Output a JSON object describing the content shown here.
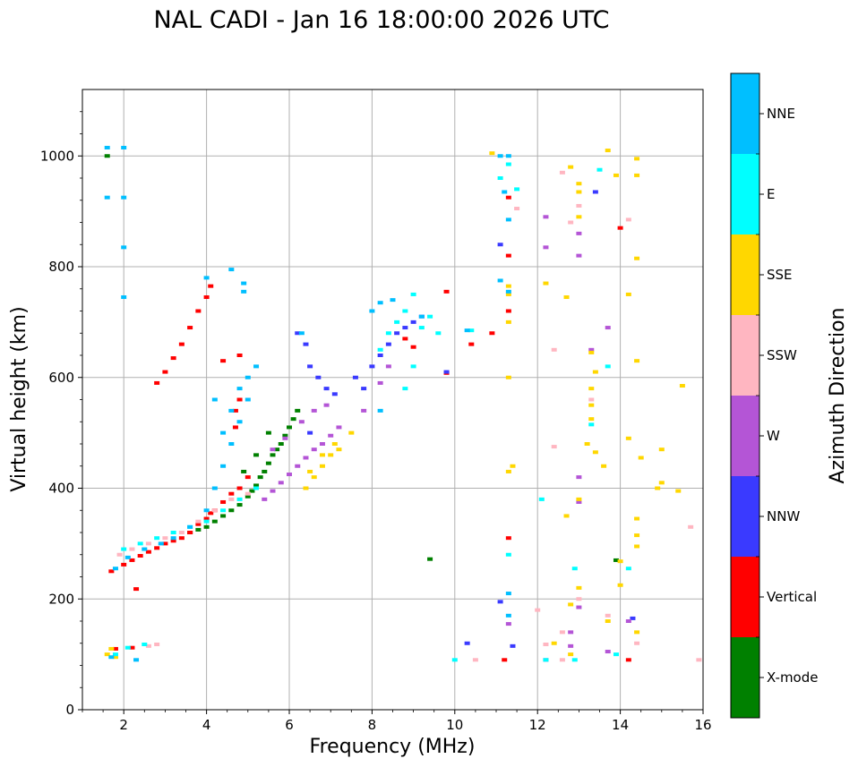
{
  "chart_data": {
    "type": "scatter",
    "title": "NAL CADI - Jan 16 18:00:00 2026 UTC",
    "xlabel": "Frequency (MHz)",
    "ylabel": "Virtual height (km)",
    "xlim": [
      1,
      16
    ],
    "ylim": [
      0,
      1120
    ],
    "xticks": [
      2,
      4,
      6,
      8,
      10,
      12,
      14,
      16
    ],
    "yticks": [
      0,
      200,
      400,
      600,
      800,
      1000
    ],
    "grid": true,
    "colorbar": {
      "label": "Azimuth Direction",
      "position": "right",
      "categories": [
        {
          "name": "X-mode",
          "color": "#008000"
        },
        {
          "name": "Vertical",
          "color": "#ff0000"
        },
        {
          "name": "NNW",
          "color": "#3a3aff"
        },
        {
          "name": "W",
          "color": "#b455d6"
        },
        {
          "name": "SSW",
          "color": "#ffb6c1"
        },
        {
          "name": "SSE",
          "color": "#ffd700"
        },
        {
          "name": "E",
          "color": "#00ffff"
        },
        {
          "name": "NNE",
          "color": "#00bfff"
        }
      ]
    },
    "series": [
      {
        "name": "X-mode",
        "points": [
          [
            3.6,
            320
          ],
          [
            3.8,
            325
          ],
          [
            4.0,
            330
          ],
          [
            4.2,
            340
          ],
          [
            4.4,
            350
          ],
          [
            4.6,
            360
          ],
          [
            4.8,
            370
          ],
          [
            5.0,
            385
          ],
          [
            5.1,
            395
          ],
          [
            5.2,
            405
          ],
          [
            5.3,
            420
          ],
          [
            5.4,
            430
          ],
          [
            5.5,
            445
          ],
          [
            5.6,
            460
          ],
          [
            5.7,
            470
          ],
          [
            5.8,
            480
          ],
          [
            5.9,
            495
          ],
          [
            6.0,
            510
          ],
          [
            6.1,
            525
          ],
          [
            6.2,
            540
          ],
          [
            4.9,
            430
          ],
          [
            5.2,
            460
          ],
          [
            5.5,
            500
          ],
          [
            1.6,
            1000
          ],
          [
            9.4,
            272
          ],
          [
            13.9,
            270
          ]
        ]
      },
      {
        "name": "Vertical",
        "points": [
          [
            1.7,
            250
          ],
          [
            2.0,
            262
          ],
          [
            2.2,
            270
          ],
          [
            2.4,
            278
          ],
          [
            2.6,
            285
          ],
          [
            2.8,
            292
          ],
          [
            3.0,
            300
          ],
          [
            3.2,
            305
          ],
          [
            3.4,
            310
          ],
          [
            3.6,
            320
          ],
          [
            3.8,
            335
          ],
          [
            4.0,
            345
          ],
          [
            4.1,
            355
          ],
          [
            4.2,
            360
          ],
          [
            4.4,
            375
          ],
          [
            4.6,
            390
          ],
          [
            4.8,
            400
          ],
          [
            5.0,
            420
          ],
          [
            2.8,
            590
          ],
          [
            3.0,
            610
          ],
          [
            3.2,
            635
          ],
          [
            3.4,
            660
          ],
          [
            3.6,
            690
          ],
          [
            3.8,
            720
          ],
          [
            4.0,
            745
          ],
          [
            4.1,
            765
          ],
          [
            4.7,
            540
          ],
          [
            4.7,
            510
          ],
          [
            4.8,
            560
          ],
          [
            4.8,
            640
          ],
          [
            4.4,
            630
          ],
          [
            2.3,
            218
          ],
          [
            2.2,
            112
          ],
          [
            1.8,
            110
          ],
          [
            11.3,
            925
          ],
          [
            11.3,
            820
          ],
          [
            11.3,
            720
          ],
          [
            11.3,
            310
          ],
          [
            14.2,
            90
          ],
          [
            14.0,
            870
          ],
          [
            9.8,
            755
          ],
          [
            9.8,
            608
          ],
          [
            10.4,
            660
          ],
          [
            10.9,
            680
          ],
          [
            8.8,
            670
          ],
          [
            9.0,
            655
          ],
          [
            11.2,
            90
          ]
        ]
      },
      {
        "name": "NNW",
        "points": [
          [
            7.6,
            600
          ],
          [
            7.8,
            580
          ],
          [
            8.0,
            620
          ],
          [
            8.2,
            640
          ],
          [
            8.4,
            660
          ],
          [
            8.6,
            680
          ],
          [
            8.8,
            690
          ],
          [
            9.0,
            700
          ],
          [
            9.2,
            710
          ],
          [
            6.2,
            680
          ],
          [
            6.4,
            660
          ],
          [
            6.5,
            620
          ],
          [
            6.7,
            600
          ],
          [
            6.9,
            580
          ],
          [
            7.1,
            570
          ],
          [
            6.5,
            500
          ],
          [
            9.8,
            610
          ],
          [
            10.3,
            120
          ],
          [
            11.1,
            195
          ],
          [
            11.4,
            115
          ],
          [
            11.1,
            840
          ],
          [
            13.4,
            935
          ],
          [
            14.3,
            165
          ]
        ]
      },
      {
        "name": "W",
        "points": [
          [
            5.4,
            380
          ],
          [
            5.6,
            395
          ],
          [
            5.8,
            410
          ],
          [
            6.0,
            425
          ],
          [
            6.2,
            440
          ],
          [
            6.4,
            455
          ],
          [
            6.6,
            470
          ],
          [
            6.8,
            480
          ],
          [
            7.0,
            495
          ],
          [
            7.2,
            510
          ],
          [
            5.6,
            470
          ],
          [
            5.9,
            490
          ],
          [
            6.3,
            520
          ],
          [
            6.6,
            540
          ],
          [
            6.9,
            550
          ],
          [
            7.8,
            540
          ],
          [
            8.2,
            590
          ],
          [
            8.4,
            620
          ],
          [
            12.2,
            890
          ],
          [
            12.2,
            835
          ],
          [
            13.0,
            860
          ],
          [
            13.0,
            820
          ],
          [
            13.0,
            420
          ],
          [
            13.0,
            375
          ],
          [
            13.0,
            185
          ],
          [
            12.8,
            115
          ],
          [
            11.3,
            155
          ],
          [
            13.7,
            690
          ],
          [
            14.2,
            160
          ],
          [
            13.7,
            105
          ],
          [
            12.8,
            140
          ],
          [
            12.2,
            90
          ],
          [
            13.3,
            650
          ]
        ]
      },
      {
        "name": "SSW",
        "points": [
          [
            1.9,
            280
          ],
          [
            2.2,
            290
          ],
          [
            2.6,
            300
          ],
          [
            3.0,
            310
          ],
          [
            3.4,
            320
          ],
          [
            3.8,
            340
          ],
          [
            4.2,
            360
          ],
          [
            4.6,
            380
          ],
          [
            5.0,
            390
          ],
          [
            2.6,
            115
          ],
          [
            2.8,
            118
          ],
          [
            12.4,
            650
          ],
          [
            12.6,
            970
          ],
          [
            12.8,
            880
          ],
          [
            13.0,
            910
          ],
          [
            13.0,
            200
          ],
          [
            12.6,
            140
          ],
          [
            12.6,
            90
          ],
          [
            10.5,
            90
          ],
          [
            14.2,
            885
          ],
          [
            15.7,
            330
          ],
          [
            15.9,
            90
          ],
          [
            12.2,
            118
          ],
          [
            13.7,
            170
          ],
          [
            14.4,
            120
          ],
          [
            11.5,
            905
          ],
          [
            12.4,
            475
          ],
          [
            13.3,
            560
          ],
          [
            12.0,
            180
          ]
        ]
      },
      {
        "name": "SSE",
        "points": [
          [
            6.4,
            400
          ],
          [
            6.6,
            420
          ],
          [
            6.8,
            440
          ],
          [
            7.0,
            460
          ],
          [
            7.2,
            470
          ],
          [
            6.5,
            430
          ],
          [
            6.8,
            460
          ],
          [
            7.1,
            480
          ],
          [
            7.5,
            500
          ],
          [
            1.6,
            100
          ],
          [
            1.7,
            110
          ],
          [
            1.8,
            95
          ],
          [
            12.8,
            980
          ],
          [
            13.0,
            950
          ],
          [
            13.0,
            935
          ],
          [
            13.0,
            890
          ],
          [
            13.0,
            380
          ],
          [
            13.0,
            220
          ],
          [
            12.8,
            190
          ],
          [
            12.8,
            100
          ],
          [
            13.3,
            645
          ],
          [
            13.4,
            610
          ],
          [
            13.3,
            580
          ],
          [
            13.3,
            550
          ],
          [
            13.3,
            525
          ],
          [
            13.4,
            465
          ],
          [
            13.2,
            480
          ],
          [
            13.6,
            440
          ],
          [
            13.9,
            965
          ],
          [
            13.7,
            1010
          ],
          [
            14.4,
            995
          ],
          [
            14.4,
            965
          ],
          [
            14.4,
            815
          ],
          [
            14.4,
            630
          ],
          [
            14.2,
            750
          ],
          [
            14.4,
            345
          ],
          [
            14.4,
            315
          ],
          [
            14.2,
            490
          ],
          [
            14.5,
            455
          ],
          [
            14.9,
            400
          ],
          [
            15.0,
            470
          ],
          [
            15.0,
            410
          ],
          [
            15.4,
            395
          ],
          [
            15.5,
            585
          ],
          [
            12.2,
            770
          ],
          [
            12.7,
            350
          ],
          [
            12.7,
            745
          ],
          [
            14.4,
            295
          ],
          [
            14.4,
            140
          ],
          [
            14.0,
            268
          ],
          [
            14.0,
            225
          ],
          [
            11.3,
            600
          ],
          [
            11.4,
            440
          ],
          [
            11.3,
            700
          ],
          [
            11.3,
            765
          ],
          [
            11.3,
            750
          ],
          [
            10.9,
            1005
          ],
          [
            11.3,
            430
          ],
          [
            13.7,
            160
          ],
          [
            12.4,
            120
          ]
        ]
      },
      {
        "name": "E",
        "points": [
          [
            1.8,
            100
          ],
          [
            2.1,
            112
          ],
          [
            2.5,
            118
          ],
          [
            2.0,
            290
          ],
          [
            2.4,
            300
          ],
          [
            2.8,
            310
          ],
          [
            3.2,
            320
          ],
          [
            3.6,
            330
          ],
          [
            4.0,
            340
          ],
          [
            4.4,
            360
          ],
          [
            4.8,
            380
          ],
          [
            5.2,
            400
          ],
          [
            8.2,
            650
          ],
          [
            8.4,
            680
          ],
          [
            8.6,
            700
          ],
          [
            8.8,
            720
          ],
          [
            9.0,
            750
          ],
          [
            9.2,
            690
          ],
          [
            9.4,
            710
          ],
          [
            9.6,
            680
          ],
          [
            10.0,
            90
          ],
          [
            11.3,
            985
          ],
          [
            11.1,
            960
          ],
          [
            11.3,
            280
          ],
          [
            12.1,
            380
          ],
          [
            12.9,
            255
          ],
          [
            13.3,
            515
          ],
          [
            13.5,
            975
          ],
          [
            13.7,
            620
          ],
          [
            13.9,
            100
          ],
          [
            14.2,
            255
          ],
          [
            12.2,
            90
          ],
          [
            12.9,
            90
          ],
          [
            10.4,
            685
          ],
          [
            11.5,
            940
          ],
          [
            9.0,
            620
          ],
          [
            8.8,
            580
          ]
        ]
      },
      {
        "name": "NNE",
        "points": [
          [
            1.6,
            1015
          ],
          [
            2.0,
            1015
          ],
          [
            1.6,
            925
          ],
          [
            2.0,
            925
          ],
          [
            2.0,
            835
          ],
          [
            2.0,
            745
          ],
          [
            1.8,
            255
          ],
          [
            2.1,
            275
          ],
          [
            2.5,
            290
          ],
          [
            2.9,
            300
          ],
          [
            3.2,
            310
          ],
          [
            3.6,
            330
          ],
          [
            4.0,
            360
          ],
          [
            4.2,
            400
          ],
          [
            4.4,
            440
          ],
          [
            4.6,
            480
          ],
          [
            4.8,
            520
          ],
          [
            5.0,
            560
          ],
          [
            4.4,
            500
          ],
          [
            4.6,
            540
          ],
          [
            4.8,
            580
          ],
          [
            4.2,
            560
          ],
          [
            5.0,
            600
          ],
          [
            5.2,
            620
          ],
          [
            4.6,
            795
          ],
          [
            4.9,
            770
          ],
          [
            4.9,
            755
          ],
          [
            4.0,
            780
          ],
          [
            6.3,
            680
          ],
          [
            8.0,
            720
          ],
          [
            8.2,
            735
          ],
          [
            8.5,
            740
          ],
          [
            9.2,
            710
          ],
          [
            10.3,
            685
          ],
          [
            11.1,
            1000
          ],
          [
            11.3,
            1000
          ],
          [
            11.3,
            885
          ],
          [
            11.2,
            935
          ],
          [
            11.3,
            755
          ],
          [
            11.3,
            210
          ],
          [
            11.3,
            170
          ],
          [
            11.1,
            775
          ],
          [
            8.2,
            540
          ],
          [
            2.3,
            90
          ],
          [
            1.7,
            95
          ]
        ]
      }
    ]
  }
}
